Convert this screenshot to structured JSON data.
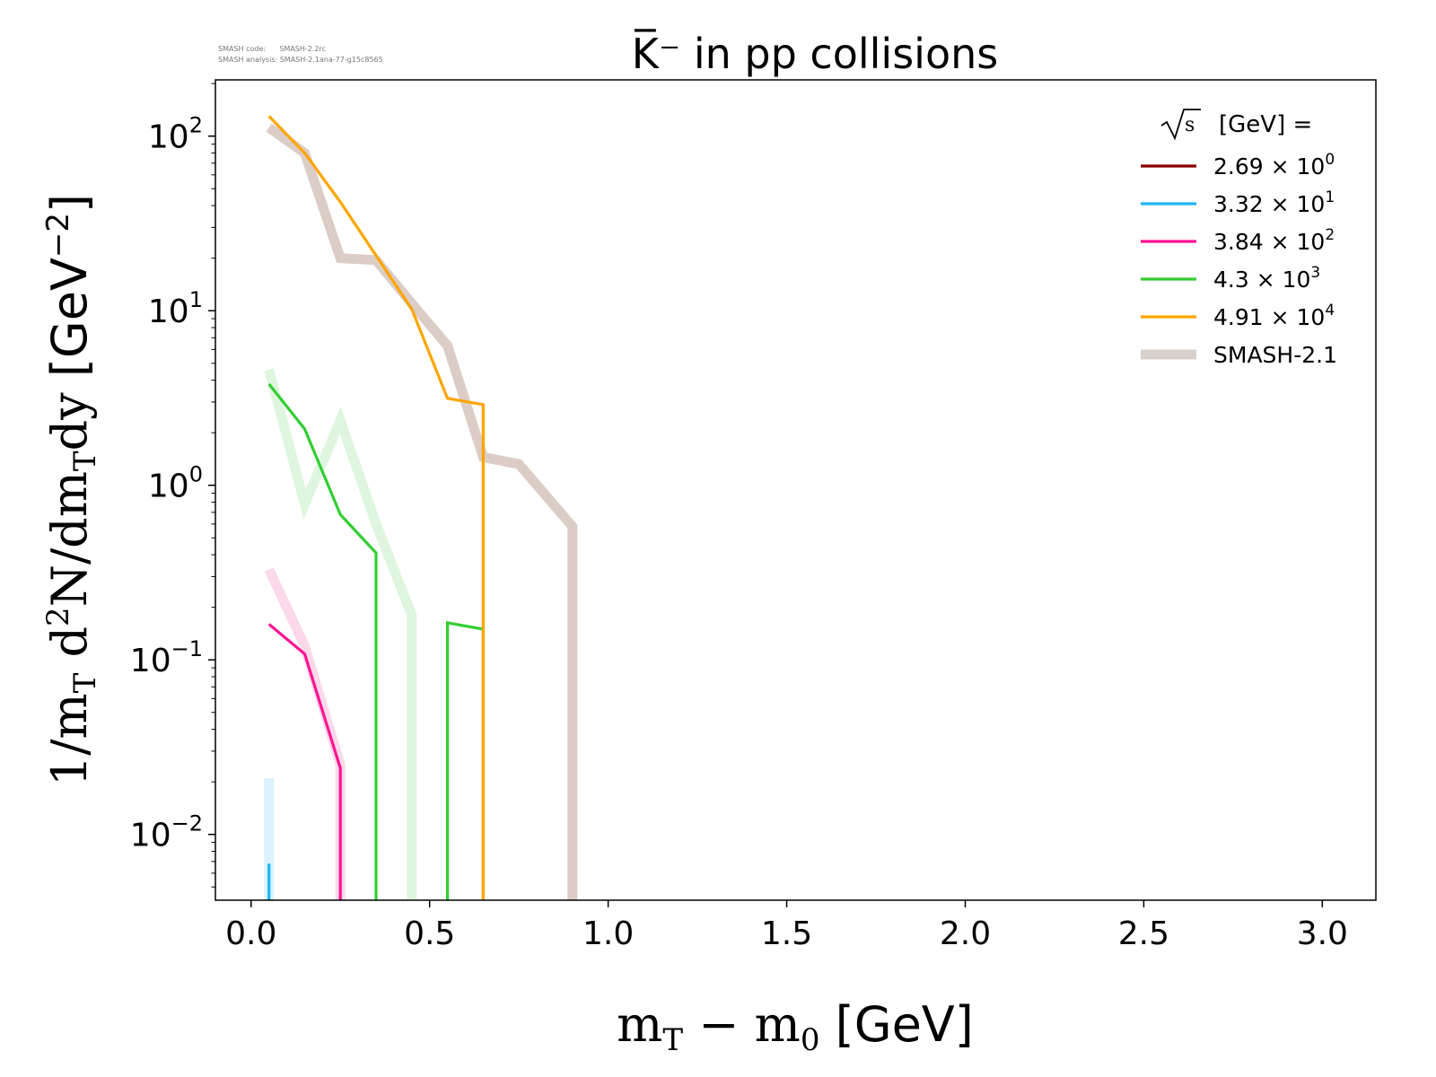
{
  "chart_data": {
    "type": "line",
    "title": "K̅⁻ in pp collisions",
    "watermark": {
      "line1": "SMASH code:      SMASH-2.2rc",
      "line2": "SMASH analysis: SMASH-2.1ana-77-g15c8565"
    },
    "xlabel": "m_T − m_0 [GeV]",
    "ylabel": "1/m_T d²N/dm_T dy [GeV⁻²]",
    "xlim": [
      -0.1,
      3.15
    ],
    "ylim": [
      0.0042,
      210
    ],
    "yscale": "log",
    "grid": false,
    "x_ticks": [
      "0.0",
      "0.5",
      "1.0",
      "1.5",
      "2.0",
      "2.5",
      "3.0"
    ],
    "y_ticks": [
      {
        "base": "10",
        "exp": "2"
      },
      {
        "base": "10",
        "exp": "1"
      },
      {
        "base": "10",
        "exp": "0"
      },
      {
        "base": "10",
        "exp": "−1"
      },
      {
        "base": "10",
        "exp": "−2"
      }
    ],
    "legend": {
      "placement": "top-right",
      "title_prefix": "√s",
      "title_suffix": "[GeV] =",
      "entries": [
        {
          "mantissa": "2.69",
          "exp": "0",
          "color": "#8b0000"
        },
        {
          "mantissa": "3.32",
          "exp": "1",
          "color": "#1eb4f0"
        },
        {
          "mantissa": "3.84",
          "exp": "2",
          "color": "#ff1493"
        },
        {
          "mantissa": "4.3",
          "exp": "3",
          "color": "#32cd32"
        },
        {
          "mantissa": "4.91",
          "exp": "4",
          "color": "#ffa500"
        },
        {
          "label": "SMASH-2.1",
          "color": "#d8d0cc",
          "thick": true
        }
      ]
    },
    "series": [
      {
        "color": "#d9f2fb",
        "width": 11,
        "points": [
          [
            0.05,
            0.021
          ],
          [
            0.05,
            0.0042
          ]
        ]
      },
      {
        "color": "#fcd9ea",
        "width": 11,
        "points": [
          [
            0.05,
            0.33
          ],
          [
            0.15,
            0.12
          ],
          [
            0.25,
            0.025
          ],
          [
            0.25,
            0.0042
          ]
        ]
      },
      {
        "color": "#dff5df",
        "width": 11,
        "points": [
          [
            0.05,
            4.6
          ],
          [
            0.15,
            0.78
          ],
          [
            0.25,
            2.35
          ],
          [
            0.35,
            0.6
          ],
          [
            0.45,
            0.18
          ],
          [
            0.45,
            0.0042
          ]
        ]
      },
      {
        "color": "#dbcdc6",
        "width": 11,
        "points": [
          [
            0.05,
            112
          ],
          [
            0.15,
            80
          ],
          [
            0.25,
            20
          ],
          [
            0.35,
            19.5
          ],
          [
            0.45,
            11
          ],
          [
            0.55,
            6.3
          ],
          [
            0.65,
            1.45
          ],
          [
            0.75,
            1.32
          ],
          [
            0.9,
            0.58
          ],
          [
            0.9,
            0.0042
          ]
        ]
      },
      {
        "color": "#1eb4f0",
        "width": 3.2,
        "points": [
          [
            0.05,
            0.0068
          ],
          [
            0.05,
            0.0042
          ]
        ]
      },
      {
        "color": "#ff1493",
        "width": 3.2,
        "points": [
          [
            0.05,
            0.16
          ],
          [
            0.15,
            0.108
          ],
          [
            0.25,
            0.024
          ],
          [
            0.25,
            0.0042
          ]
        ]
      },
      {
        "color": "#32cd32",
        "width": 3.2,
        "points": [
          [
            0.05,
            3.8
          ],
          [
            0.15,
            2.1
          ],
          [
            0.25,
            0.68
          ],
          [
            0.35,
            0.41
          ],
          [
            0.35,
            0.0042
          ]
        ]
      },
      {
        "color": "#32cd32",
        "width": 3.2,
        "points": [
          [
            0.55,
            0.0042
          ],
          [
            0.55,
            0.163
          ],
          [
            0.65,
            0.15
          ],
          [
            0.65,
            0.0042
          ]
        ]
      },
      {
        "color": "#ffa500",
        "width": 3.2,
        "points": [
          [
            0.05,
            130
          ],
          [
            0.15,
            80
          ],
          [
            0.25,
            42
          ],
          [
            0.45,
            10.2
          ],
          [
            0.55,
            3.15
          ],
          [
            0.65,
            2.9
          ],
          [
            0.65,
            0.0042
          ]
        ]
      }
    ]
  }
}
